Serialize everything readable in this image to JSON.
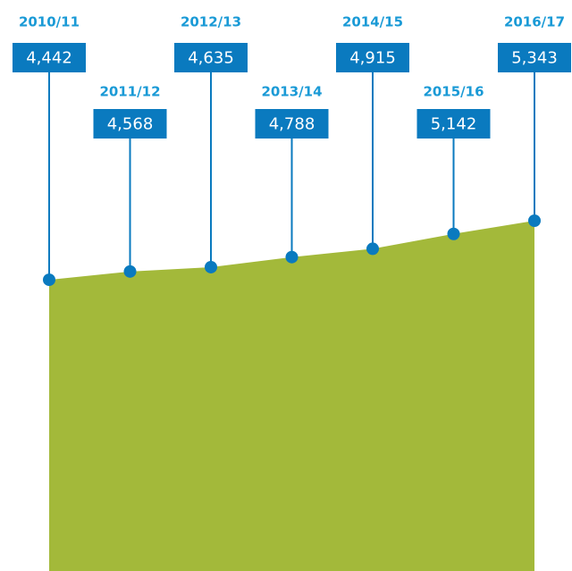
{
  "chart_data": {
    "type": "area",
    "categories": [
      "2010/11",
      "2011/12",
      "2012/13",
      "2013/14",
      "2014/15",
      "2015/16",
      "2016/17"
    ],
    "values": [
      4442,
      4568,
      4635,
      4788,
      4915,
      5142,
      5343
    ],
    "value_labels": [
      "4,442",
      "4,568",
      "4,635",
      "4,788",
      "4,915",
      "5,142",
      "5,343"
    ],
    "color": "#a3b93a",
    "marker_color": "#0a7abf"
  }
}
